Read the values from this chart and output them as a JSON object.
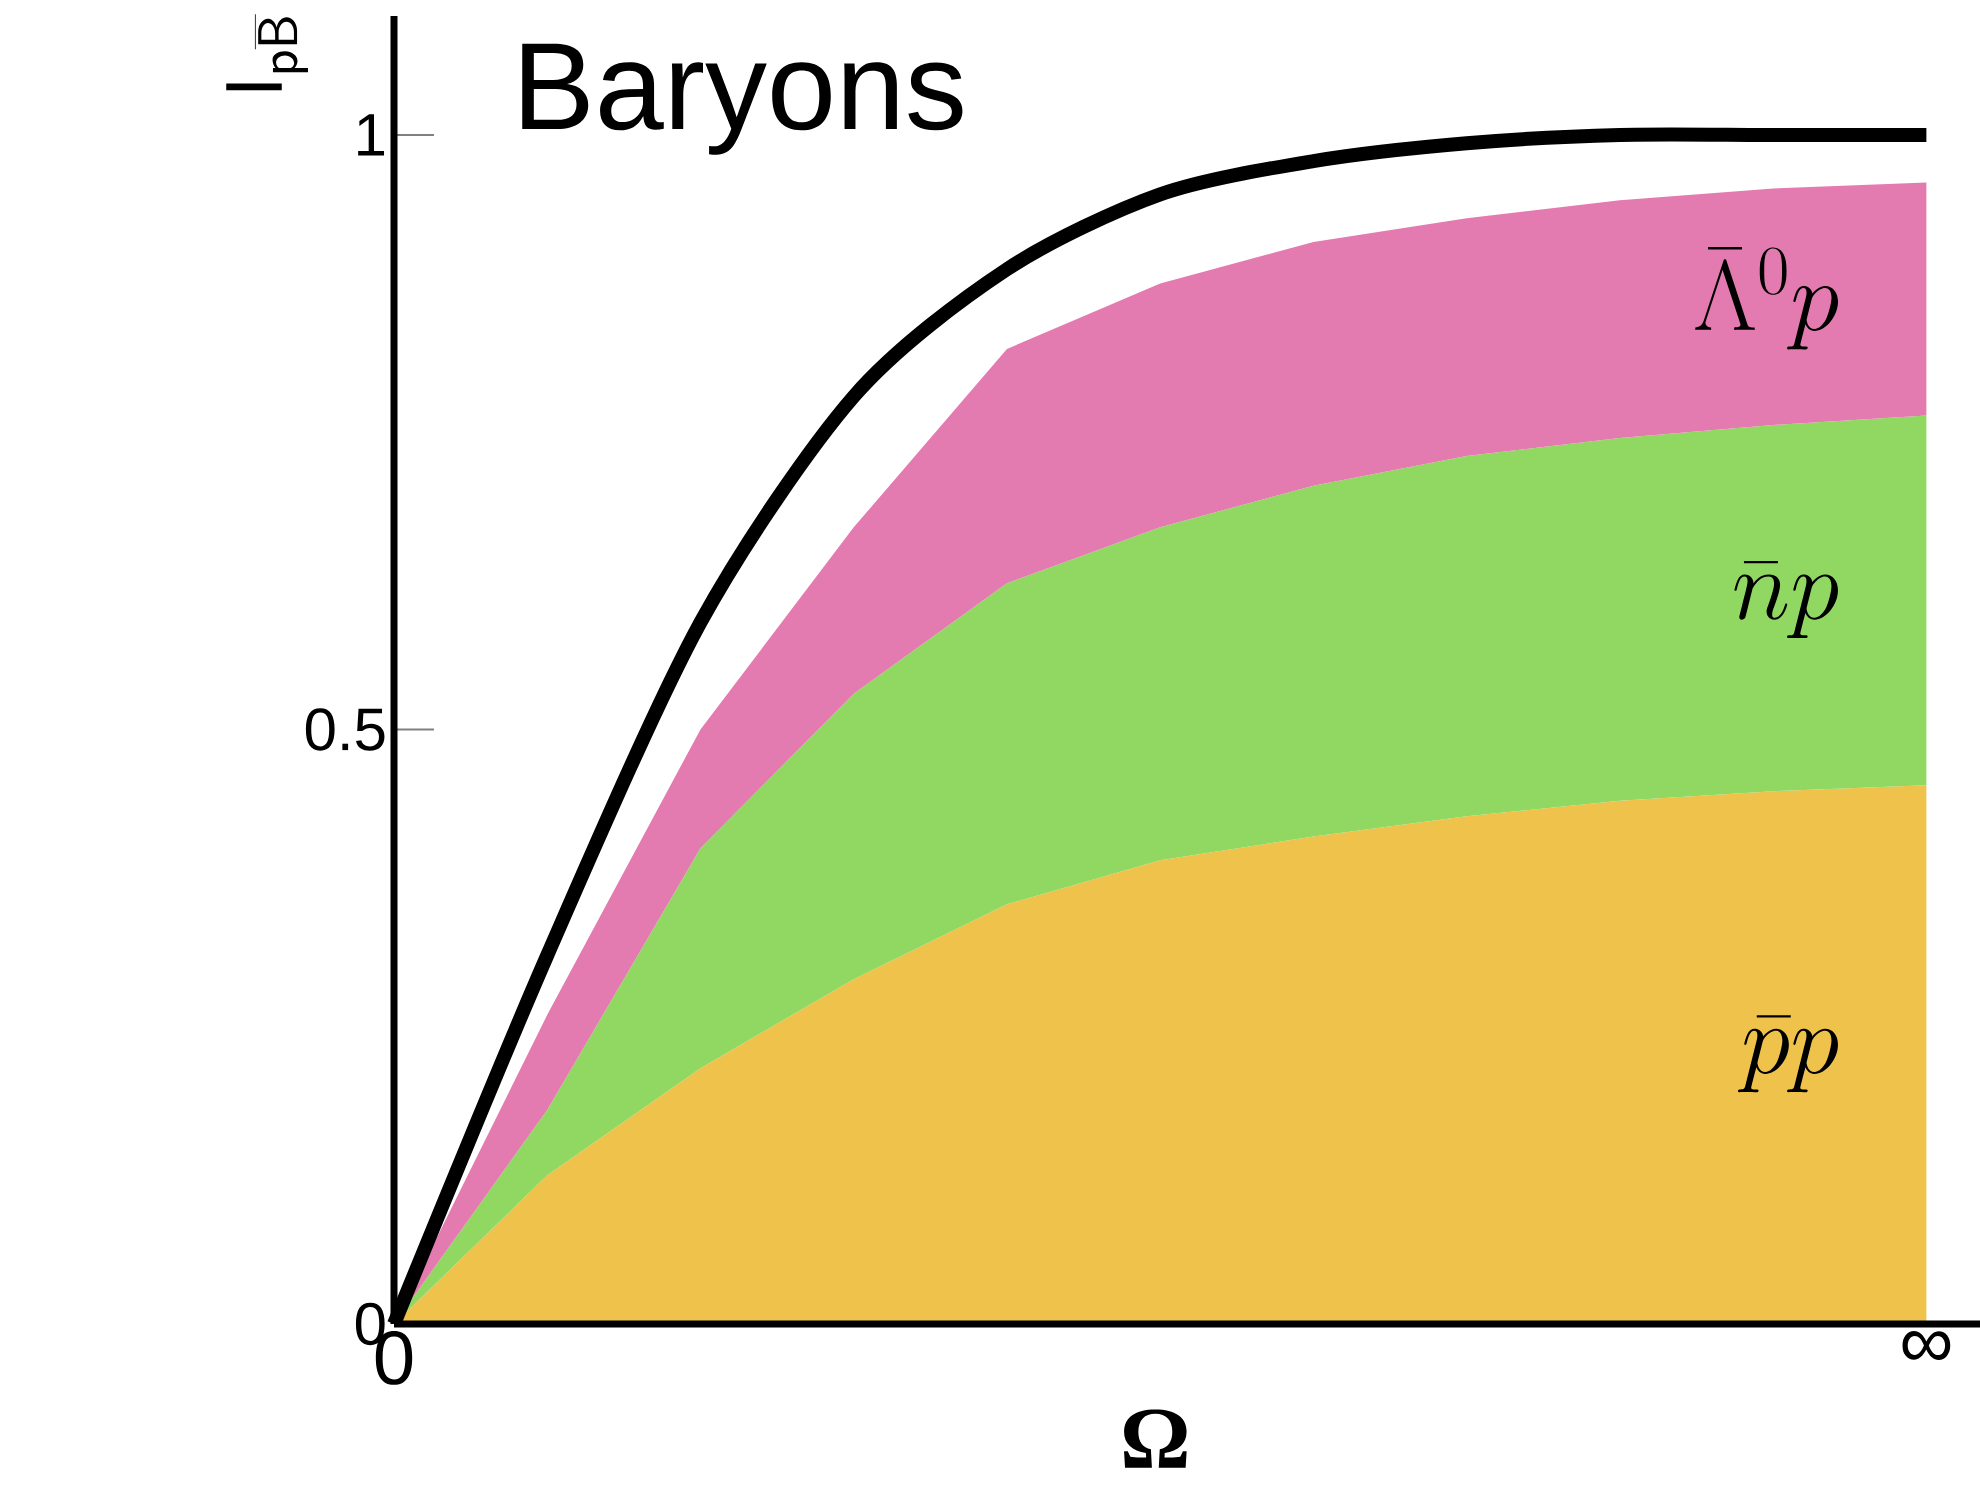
{
  "chart_data": {
    "type": "area",
    "title": "Baryons",
    "xlabel": "Ω",
    "ylabel": "\\mathsf{I}_{\\mathsf{p}\\overline{\\mathsf{B}}}",
    "stacked": true,
    "categories": [
      "0",
      null,
      null,
      null,
      null,
      null,
      null,
      null,
      null,
      null,
      "∞"
    ],
    "series": [
      {
        "name": "\\bar{p}p",
        "color": "#efc24b",
        "values": [
          0,
          0.125,
          0.215,
          0.29,
          0.353,
          0.39,
          0.41,
          0.427,
          0.44,
          0.448,
          0.453
        ]
      },
      {
        "name": "\\bar{n}p",
        "color": "#90d862",
        "values": [
          0,
          0.055,
          0.185,
          0.24,
          0.27,
          0.28,
          0.295,
          0.303,
          0.305,
          0.308,
          0.311
        ]
      },
      {
        "name": "\\bar{\\Lambda}^0p",
        "color": "#e47bb0",
        "values": [
          0,
          0.08,
          0.1,
          0.14,
          0.197,
          0.205,
          0.205,
          0.2,
          0.2,
          0.199,
          0.196
        ]
      },
      {
        "type": "line",
        "color": "#000000",
        "values": [
          0,
          0.31,
          0.59,
          0.78,
          0.887,
          0.95,
          0.978,
          0.993,
          1.0,
          1.0,
          1.0
        ]
      }
    ],
    "ylim": [
      0,
      1.1
    ],
    "yticks": [
      0,
      0.5,
      1
    ]
  }
}
